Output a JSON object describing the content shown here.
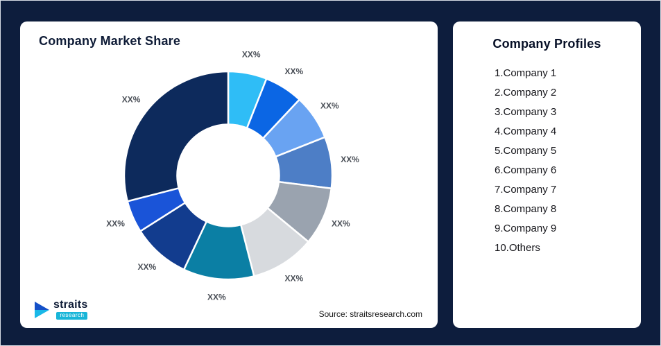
{
  "page": {
    "background_color": "#0d1d3d"
  },
  "left_card": {
    "title": "Company Market Share",
    "source": "Source: straitsresearch.com",
    "logo": {
      "name": "straits",
      "sub": "research"
    }
  },
  "right_card": {
    "title": "Company Profiles",
    "items": [
      "1.Company 1",
      "2.Company 2",
      "3.Company 3",
      "4.Company 4",
      "5.Company 5",
      "6.Company 6",
      "7.Company 7",
      "8.Company 8",
      "9.Company 9",
      "10.Others"
    ]
  },
  "chart_data": {
    "type": "pie",
    "donut": true,
    "inner_radius_ratio": 0.49,
    "title": "Company Market Share",
    "legend_position": "none",
    "segments": [
      {
        "label": "XX%",
        "value": 6,
        "color": "#2fbdf6"
      },
      {
        "label": "XX%",
        "value": 6,
        "color": "#0b66e4"
      },
      {
        "label": "XX%",
        "value": 7,
        "color": "#69a3f2"
      },
      {
        "label": "XX%",
        "value": 8,
        "color": "#4d7ec6"
      },
      {
        "label": "XX%",
        "value": 9,
        "color": "#9aa3af"
      },
      {
        "label": "XX%",
        "value": 10,
        "color": "#d7dade"
      },
      {
        "label": "XX%",
        "value": 11,
        "color": "#0b7fa4"
      },
      {
        "label": "XX%",
        "value": 9,
        "color": "#123c8e"
      },
      {
        "label": "XX%",
        "value": 5,
        "color": "#1a54d8"
      },
      {
        "label": "XX%",
        "value": 29,
        "color": "#0d2a5c"
      }
    ]
  }
}
